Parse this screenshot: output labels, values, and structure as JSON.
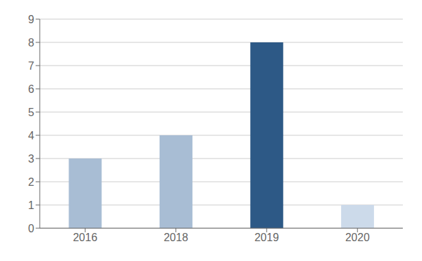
{
  "chart_data": {
    "type": "bar",
    "categories": [
      "2016",
      "2018",
      "2019",
      "2020"
    ],
    "values": [
      3,
      4,
      8,
      1
    ],
    "colors": [
      "#a8bdd4",
      "#a8bdd4",
      "#2d5986",
      "#ccdaea"
    ],
    "ylim": [
      0,
      9
    ],
    "yticks": [
      0,
      1,
      2,
      3,
      4,
      5,
      6,
      7,
      8,
      9
    ],
    "grid": true
  }
}
